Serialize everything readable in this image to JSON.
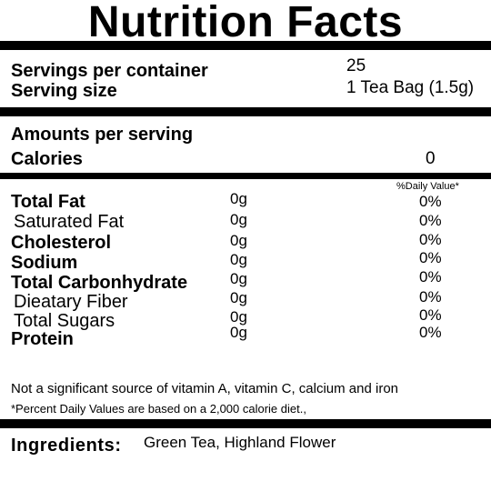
{
  "title": "Nutrition Facts",
  "servings_per_container": {
    "label": "Servings per container",
    "value": "25"
  },
  "serving_size": {
    "label": "Serving size",
    "value": "1 Tea Bag (1.5g)"
  },
  "amounts_per_serving": "Amounts per serving",
  "calories": {
    "label": "Calories",
    "value": "0"
  },
  "daily_value_header": "%Daily Value*",
  "nutrients": [
    {
      "label": "Total Fat",
      "amount": "0g",
      "dv": "0%"
    },
    {
      "label": "Saturated Fat",
      "amount": "0g",
      "dv": "0%"
    },
    {
      "label": "Cholesterol",
      "amount": "0g",
      "dv": "0%"
    },
    {
      "label": "Sodium",
      "amount": "0g",
      "dv": "0%"
    },
    {
      "label": "Total Carbonhydrate",
      "amount": "0g",
      "dv": "0%"
    },
    {
      "label": "Dieatary Fiber",
      "amount": "0g",
      "dv": "0%"
    },
    {
      "label": "Total Sugars",
      "amount": "0g",
      "dv": "0%"
    },
    {
      "label": "Protein",
      "amount": "0g",
      "dv": "0%"
    }
  ],
  "footnote_vitamins": "Not a significant source of vitamin A, vitamin C, calcium and iron",
  "footnote_percent": "*Percent Daily Values are based on a 2,000 calorie diet.,",
  "ingredients": {
    "label": "Ingredients:",
    "value": "Green Tea, Highland Flower"
  }
}
